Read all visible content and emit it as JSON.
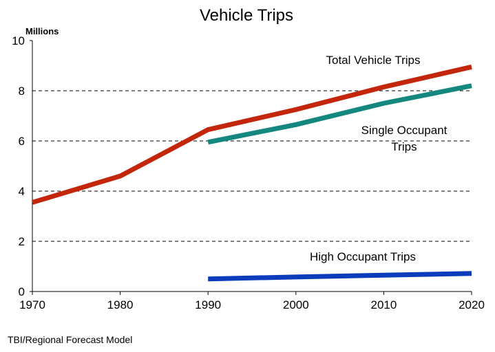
{
  "chart_data": {
    "type": "line",
    "title": "Vehicle Trips",
    "y_label": "Millions",
    "source": "TBI/Regional Forecast Model",
    "x": [
      1970,
      1980,
      1990,
      2000,
      2010,
      2020
    ],
    "xlim": [
      1970,
      2020
    ],
    "xticks": [
      1970,
      1980,
      1990,
      2000,
      2010,
      2020
    ],
    "ylim": [
      0,
      10
    ],
    "yticks": [
      0,
      2,
      4,
      6,
      8,
      10
    ],
    "grid": true,
    "series": [
      {
        "name": "Total Vehicle Trips",
        "color": "#c4260c",
        "values": [
          3.55,
          4.6,
          6.45,
          7.25,
          8.15,
          8.95
        ]
      },
      {
        "name": "Single Occupant Trips",
        "color": "#14887e",
        "values": [
          null,
          null,
          5.95,
          6.65,
          7.5,
          8.2
        ]
      },
      {
        "name": "High Occupant Trips",
        "color": "#0a3cbc",
        "values": [
          null,
          null,
          0.5,
          0.58,
          0.65,
          0.72
        ]
      }
    ]
  }
}
